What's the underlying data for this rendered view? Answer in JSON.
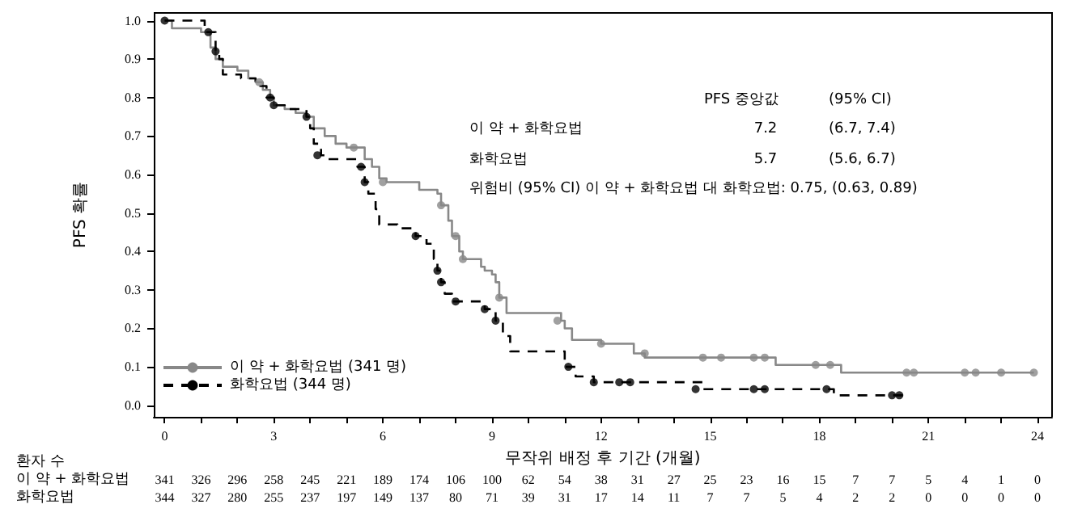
{
  "chart_data": {
    "type": "step",
    "xlabel": "무작위 배정 후 기간 (개월)",
    "ylabel": "PFS 확률",
    "xlim": [
      -0.3,
      24.4
    ],
    "ylim": [
      -0.03,
      1.02
    ],
    "xticks": [
      0,
      {
        "value": 1,
        "label": null
      },
      {
        "value": 2,
        "label": null
      },
      3,
      {
        "value": 4,
        "label": null
      },
      {
        "value": 5,
        "label": null
      },
      6,
      {
        "value": 7,
        "label": null
      },
      {
        "value": 8,
        "label": null
      },
      9,
      {
        "value": 10,
        "label": null
      },
      {
        "value": 11,
        "label": null
      },
      12,
      {
        "value": 13,
        "label": null
      },
      {
        "value": 14,
        "label": null
      },
      15,
      {
        "value": 16,
        "label": null
      },
      {
        "value": 17,
        "label": null
      },
      18,
      {
        "value": 19,
        "label": null
      },
      {
        "value": 20,
        "label": null
      },
      21,
      {
        "value": 22,
        "label": null
      },
      {
        "value": 23,
        "label": null
      },
      24
    ],
    "yticks": [
      {
        "value": 0,
        "label": "0.0"
      },
      {
        "value": 0.1,
        "label": "0.1"
      },
      {
        "value": 0.2,
        "label": "0.2"
      },
      {
        "value": 0.3,
        "label": "0.3"
      },
      {
        "value": 0.4,
        "label": "0.4"
      },
      {
        "value": 0.5,
        "label": "0.5"
      },
      {
        "value": 0.6,
        "label": "0.6"
      },
      {
        "value": 0.7,
        "label": "0.7"
      },
      {
        "value": 0.8,
        "label": "0.8"
      },
      {
        "value": 0.9,
        "label": "0.9"
      },
      {
        "value": 1,
        "label": "1.0"
      }
    ],
    "grid": false,
    "legend": "bottom left",
    "series": [
      {
        "name": "이 약 + 화학요법 (341 명)",
        "color": "#888888",
        "line_style": "solid",
        "x": [
          0,
          0.2,
          1.0,
          1.26,
          1.4,
          1.6,
          2.0,
          2.3,
          2.5,
          2.7,
          2.9,
          3.0,
          3.3,
          3.6,
          3.9,
          4.1,
          4.4,
          4.7,
          5.0,
          5.5,
          5.7,
          5.9,
          6.1,
          7.0,
          7.5,
          7.6,
          7.8,
          7.9,
          8.1,
          8.2,
          8.7,
          8.8,
          9.0,
          9.1,
          9.2,
          9.4,
          10.9,
          11.0,
          11.2,
          12.0,
          12.9,
          13.2,
          16.8,
          18.6,
          23.9
        ],
        "values": [
          1.0,
          0.98,
          0.97,
          0.93,
          0.9,
          0.88,
          0.87,
          0.85,
          0.84,
          0.82,
          0.8,
          0.78,
          0.77,
          0.76,
          0.75,
          0.72,
          0.7,
          0.68,
          0.67,
          0.64,
          0.62,
          0.59,
          0.58,
          0.56,
          0.55,
          0.52,
          0.48,
          0.44,
          0.4,
          0.38,
          0.36,
          0.35,
          0.34,
          0.32,
          0.28,
          0.24,
          0.22,
          0.2,
          0.17,
          0.16,
          0.135,
          0.124,
          0.105,
          0.085,
          0.085
        ]
      },
      {
        "name": "화학요법 (344 명)",
        "color": "#000000",
        "line_style": "dashed",
        "x": [
          0,
          1.1,
          1.4,
          1.5,
          1.6,
          2.1,
          2.5,
          2.8,
          3.0,
          3.3,
          3.9,
          4.0,
          4.1,
          4.3,
          4.5,
          5.3,
          5.5,
          5.6,
          5.8,
          5.9,
          6.4,
          6.9,
          7.2,
          7.4,
          7.5,
          7.6,
          7.7,
          7.9,
          8.8,
          9.1,
          9.3,
          9.5,
          11.0,
          11.3,
          11.8,
          14.8,
          18.4,
          20.3
        ],
        "values": [
          1.0,
          0.97,
          0.92,
          0.9,
          0.86,
          0.85,
          0.83,
          0.8,
          0.78,
          0.77,
          0.75,
          0.72,
          0.68,
          0.65,
          0.64,
          0.62,
          0.58,
          0.55,
          0.51,
          0.47,
          0.46,
          0.44,
          0.42,
          0.38,
          0.35,
          0.32,
          0.29,
          0.27,
          0.25,
          0.22,
          0.18,
          0.14,
          0.1,
          0.075,
          0.06,
          0.042,
          0.026,
          0.026
        ]
      },
      {
        "type": "scatter",
        "color": "#888888",
        "marker": "circle",
        "x": [
          2.6,
          5.2,
          6.0,
          7.6,
          8.0,
          8.2,
          9.2,
          10.8,
          12.0,
          13.2,
          14.8,
          15.3,
          16.2,
          16.5,
          17.9,
          18.3,
          20.4,
          20.6,
          22.0,
          22.3,
          23.0,
          23.9
        ],
        "values": [
          0.84,
          0.67,
          0.58,
          0.52,
          0.44,
          0.38,
          0.28,
          0.22,
          0.16,
          0.135,
          0.124,
          0.124,
          0.124,
          0.124,
          0.105,
          0.105,
          0.085,
          0.085,
          0.085,
          0.085,
          0.085,
          0.085
        ]
      },
      {
        "type": "scatter",
        "color": "#000000",
        "marker": "circle",
        "x": [
          0,
          1.2,
          1.4,
          2.9,
          3.0,
          3.9,
          4.2,
          5.4,
          5.5,
          6.9,
          7.5,
          7.6,
          8.0,
          8.8,
          9.1,
          11.1,
          11.8,
          12.5,
          12.8,
          14.6,
          16.2,
          16.5,
          18.2,
          20.0,
          20.2
        ],
        "values": [
          1.0,
          0.97,
          0.92,
          0.8,
          0.78,
          0.75,
          0.65,
          0.62,
          0.58,
          0.44,
          0.35,
          0.32,
          0.27,
          0.25,
          0.22,
          0.1,
          0.06,
          0.06,
          0.06,
          0.042,
          0.042,
          0.042,
          0.042,
          0.026,
          0.026
        ]
      }
    ],
    "annotations": [
      "PFS 중앙값",
      "(95% CI)",
      "이 약 + 화학요법",
      "7.2",
      "(6.7, 7.4)",
      "화학요법",
      "5.7",
      "(5.6, 6.7)",
      "위험비 (95% CI) 이 약 + 화학요법 대 화학요법: 0.75, (0.63, 0.89)",
      "환자 수",
      "이 약 + 화학요법",
      "341 326 296 258 245 221 189 174 106 100 62 54 38 31 27 25 23 16 15 7 7 5 4 1 0",
      "화학요법",
      "344 327 280 255 237 197 149 137 80 71 39 31 17 14 11 7 7 5 4 2 2 0 0 0 0"
    ]
  }
}
